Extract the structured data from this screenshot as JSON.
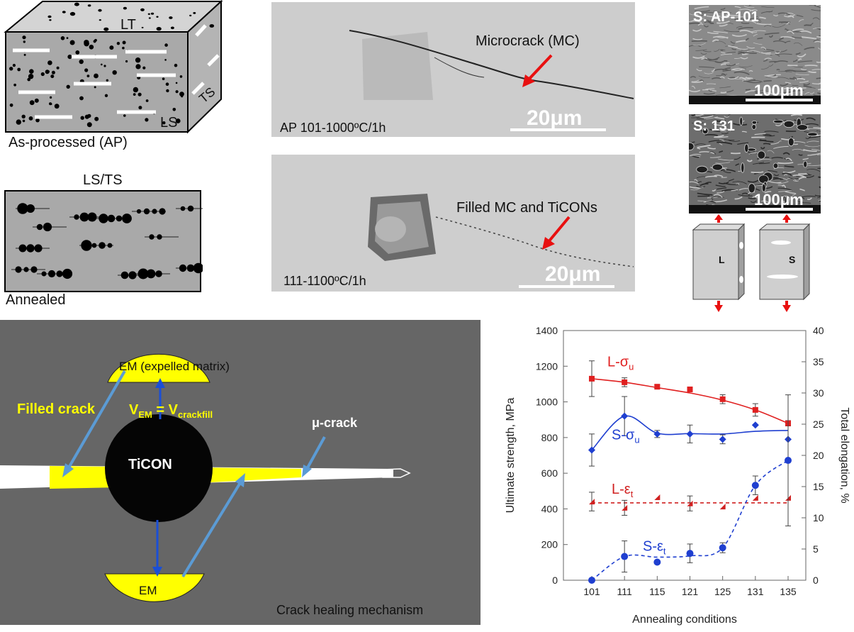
{
  "as_processed": {
    "face_top": "LT",
    "face_front": "LS",
    "face_side": "TS",
    "caption": "As-processed (AP)"
  },
  "annealed": {
    "face_label": "LS/TS",
    "caption": "Annealed"
  },
  "micro_top": {
    "arrow_label": "Microcrack (MC)",
    "condition": "AP 101-1000ºC/1h",
    "scale": "20μm"
  },
  "micro_bottom": {
    "arrow_label": "Filled MC and TiCONs",
    "condition": "111-1100ºC/1h",
    "scale": "20μm"
  },
  "fracto_top": {
    "label": "S: AP-101",
    "scale": "100μm"
  },
  "fracto_bottom": {
    "label": "S: 131",
    "scale": "100μm"
  },
  "specimens": {
    "left": "L",
    "right": "S"
  },
  "mechanism": {
    "top_em": "EM (expelled matrix)",
    "bottom_em": "EM",
    "filled_crack": "Filled crack",
    "equation_v": "V",
    "equation_sub1": "EM",
    "equation_eq": " = V",
    "equation_sub2": "crackfill",
    "particle": "TiCON",
    "microcrack": "μ-crack",
    "title": "Crack healing mechanism",
    "colors": {
      "background": "#666666",
      "yellow": "#ffff00",
      "arrow_blue": "#1a4fd6",
      "arrow_light": "#5b9bd5"
    }
  },
  "chart_data": {
    "type": "line",
    "xlabel": "Annealing conditions",
    "ylabel_left": "Ultimate strength, MPa",
    "ylabel_right": "Total elongation, %",
    "categories": [
      "101",
      "111",
      "115",
      "121",
      "125",
      "131",
      "135"
    ],
    "y_left_ticks": [
      "0",
      "200",
      "400",
      "600",
      "800",
      "1000",
      "1200",
      "1400"
    ],
    "y_left_range": [
      0,
      1400
    ],
    "y_right_ticks": [
      "0",
      "5",
      "10",
      "15",
      "20",
      "25",
      "30",
      "35",
      "40"
    ],
    "y_right_range": [
      0,
      40
    ],
    "series": [
      {
        "name": "L-σ",
        "sub": "u",
        "axis": "left",
        "color": "#e02020",
        "marker": "square",
        "values": [
          1130,
          1110,
          1085,
          1070,
          1015,
          955,
          880
        ],
        "errors": [
          100,
          25,
          10,
          10,
          25,
          35,
          15
        ],
        "fit": [
          1130,
          1110,
          1080,
          1050,
          1010,
          955,
          880
        ],
        "line": "solid"
      },
      {
        "name": "S-σ",
        "sub": "u",
        "axis": "left",
        "color": "#1f3fd0",
        "marker": "diamond",
        "values": [
          730,
          920,
          820,
          820,
          790,
          870,
          790
        ],
        "errors": [
          90,
          110,
          20,
          50,
          25,
          0,
          0
        ],
        "fit": [
          730,
          920,
          825,
          822,
          820,
          835,
          840
        ],
        "line": "solid"
      },
      {
        "name": "L-ε",
        "sub": "t",
        "axis": "right",
        "color": "#d02020",
        "marker": "triangle",
        "values": [
          12.6,
          11.6,
          13.3,
          12.3,
          11.8,
          13.2,
          13.2
        ],
        "errors": [
          1.5,
          1.2,
          0,
          1.2,
          0,
          0,
          0
        ],
        "fit": [
          12.4,
          12.4,
          12.4,
          12.4,
          12.4,
          12.4,
          12.4
        ],
        "line": "dashed"
      },
      {
        "name": "S-ε",
        "sub": "t",
        "axis": "right",
        "color": "#1f3fd0",
        "marker": "circle",
        "values": [
          0.0,
          3.8,
          2.9,
          4.3,
          5.2,
          15.2,
          19.2
        ],
        "errors": [
          0,
          2.5,
          0,
          1.5,
          0.8,
          1.5,
          10.5
        ],
        "fit": [
          0.0,
          3.8,
          3.7,
          3.9,
          5.2,
          15.2,
          19.2
        ],
        "line": "dashed"
      }
    ]
  }
}
